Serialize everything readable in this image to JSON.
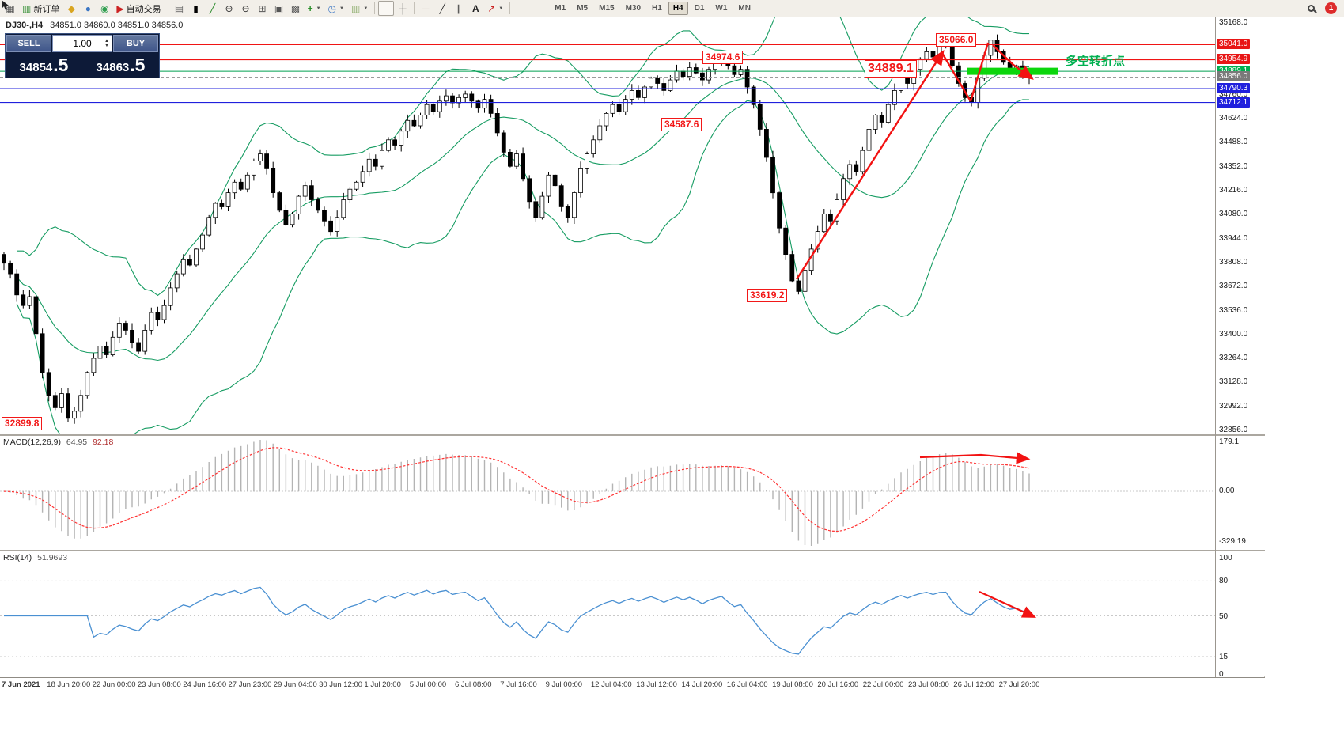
{
  "window": {
    "badge_count": "1"
  },
  "toolbar": {
    "new_order_label": "新订单",
    "autotrading_label": "自动交易",
    "text_tool_label": "A",
    "timeframes": [
      "M1",
      "M5",
      "M15",
      "M30",
      "H1",
      "H4",
      "D1",
      "W1",
      "MN"
    ],
    "active_timeframe": "H4"
  },
  "symbol_info": {
    "symbol": "DJ30-,H4",
    "ohlc": "34851.0 34860.0 34851.0 34856.0"
  },
  "trade_panel": {
    "sell_label": "SELL",
    "buy_label": "BUY",
    "volume": "1.00",
    "sell_price_main": "34854",
    "sell_price_big": ".5",
    "buy_price_main": "34863",
    "buy_price_big": ".5"
  },
  "main_chart": {
    "turning_point_text": "多空转折点",
    "price_flags": [
      "35066.0",
      "34974.6",
      "34889.1",
      "34587.6",
      "33619.2",
      "32899.8"
    ]
  },
  "macd": {
    "name": "MACD(12,26,9)",
    "value_main": "64.95",
    "value_signal": "92.18",
    "axis_labels": [
      "179.1",
      "0.00",
      "-329.19"
    ]
  },
  "rsi": {
    "name": "RSI(14)",
    "value": "51.9693",
    "axis_labels": [
      "100",
      "80",
      "50",
      "15",
      "0"
    ]
  },
  "time_axis": [
    "7 Jun 2021",
    "18 Jun 20:00",
    "22 Jun 00:00",
    "23 Jun 08:00",
    "24 Jun 16:00",
    "27 Jun 23:00",
    "29 Jun 04:00",
    "30 Jun 12:00",
    "1 Jul 20:00",
    "5 Jul 00:00",
    "6 Jul 08:00",
    "7 Jul 16:00",
    "9 Jul 00:00",
    "12 Jul 04:00",
    "13 Jul 12:00",
    "14 Jul 20:00",
    "16 Jul 04:00",
    "19 Jul 08:00",
    "20 Jul 16:00",
    "22 Jul 00:00",
    "23 Jul 08:00",
    "26 Jul 12:00",
    "27 Jul 20:00"
  ],
  "chart_data": {
    "type": "candlestick",
    "symbol": "DJ30-",
    "timeframe": "H4",
    "current_ohlc": {
      "open": 34851.0,
      "high": 34860.0,
      "low": 34851.0,
      "close": 34856.0
    },
    "bid": 34854.5,
    "ask": 34863.5,
    "ylim": [
      32856.0,
      35168.0
    ],
    "price_axis_ticks": [
      35168.0,
      35032.0,
      34896.0,
      34760.0,
      34624.0,
      34488.0,
      34352.0,
      34216.0,
      34080.0,
      33944.0,
      33808.0,
      33672.0,
      33536.0,
      33400.0,
      33264.0,
      33128.0,
      32992.0,
      32856.0
    ],
    "key_levels": {
      "resistance": [
        35041.0,
        34954.9
      ],
      "turning_point": 34889.1,
      "support": [
        34790.3,
        34712.1
      ],
      "last_price": 34856.0,
      "swing_high": 35066.0,
      "swing_low": 32899.8,
      "axis_flags": [
        {
          "value": "35041.0",
          "color": "#e81616"
        },
        {
          "value": "34954.9",
          "color": "#e81616"
        },
        {
          "value": "34889.1",
          "color": "#00b050"
        },
        {
          "value": "34856.0",
          "color": "#7a7a7a"
        },
        {
          "value": "34790.3",
          "color": "#2020dd"
        },
        {
          "value": "34712.1",
          "color": "#2020dd"
        }
      ]
    },
    "indicators": {
      "bollinger_bands": {
        "period": 20,
        "deviation": 2
      },
      "macd": {
        "fast": 12,
        "slow": 26,
        "signal": 9,
        "current_main": 64.95,
        "current_signal": 92.18,
        "scale_max": 179.1,
        "scale_min": -329.19
      },
      "rsi": {
        "period": 14,
        "current": 51.9693,
        "levels": [
          80,
          50,
          15
        ]
      }
    },
    "estimated_closes": [
      33800,
      33740,
      33620,
      33560,
      33610,
      33400,
      33180,
      33050,
      32980,
      33060,
      32920,
      32960,
      33050,
      33180,
      33260,
      33330,
      33280,
      33380,
      33460,
      33420,
      33350,
      33300,
      33420,
      33520,
      33480,
      33560,
      33660,
      33740,
      33820,
      33790,
      33880,
      33960,
      34060,
      34140,
      34120,
      34200,
      34260,
      34220,
      34300,
      34380,
      34420,
      34340,
      34200,
      34100,
      34020,
      34080,
      34180,
      34240,
      34160,
      34100,
      34040,
      33980,
      34060,
      34160,
      34220,
      34260,
      34320,
      34390,
      34350,
      34440,
      34500,
      34470,
      34550,
      34610,
      34580,
      34640,
      34700,
      34660,
      34720,
      34750,
      34710,
      34740,
      34760,
      34720,
      34680,
      34730,
      34650,
      34540,
      34430,
      34350,
      34420,
      34280,
      34150,
      34060,
      34180,
      34300,
      34240,
      34120,
      34060,
      34200,
      34340,
      34420,
      34500,
      34580,
      34650,
      34700,
      34660,
      34730,
      34780,
      34740,
      34800,
      34850,
      34820,
      34780,
      34840,
      34890,
      34860,
      34910,
      34880,
      34840,
      34900,
      34940,
      34975,
      34920,
      34870,
      34900,
      34800,
      34700,
      34560,
      34400,
      34200,
      34000,
      33850,
      33700,
      33640,
      33760,
      33880,
      33980,
      34080,
      34040,
      34160,
      34280,
      34360,
      34320,
      34440,
      34560,
      34640,
      34600,
      34700,
      34780,
      34860,
      34820,
      34900,
      34960,
      35000,
      34970,
      35030,
      35040,
      34920,
      34820,
      34740,
      34712,
      34850,
      34980,
      35066,
      35000,
      34940,
      34900,
      34920,
      34880,
      34856
    ],
    "colors": {
      "up_candle": "#ffffff",
      "down_candle": "#000000",
      "candle_outline": "#000000",
      "bollinger": "#169c62",
      "resistance": "#f01414",
      "support": "#2020dd",
      "turning_thin": "#00a050",
      "thick_green": "#0cd60c",
      "last_price_line": "#9a9a9a",
      "annotation_red": "#f21212",
      "macd_hist": "#b4b4b4",
      "macd_signal": "#ff3333",
      "rsi_line": "#4a90d2"
    }
  }
}
